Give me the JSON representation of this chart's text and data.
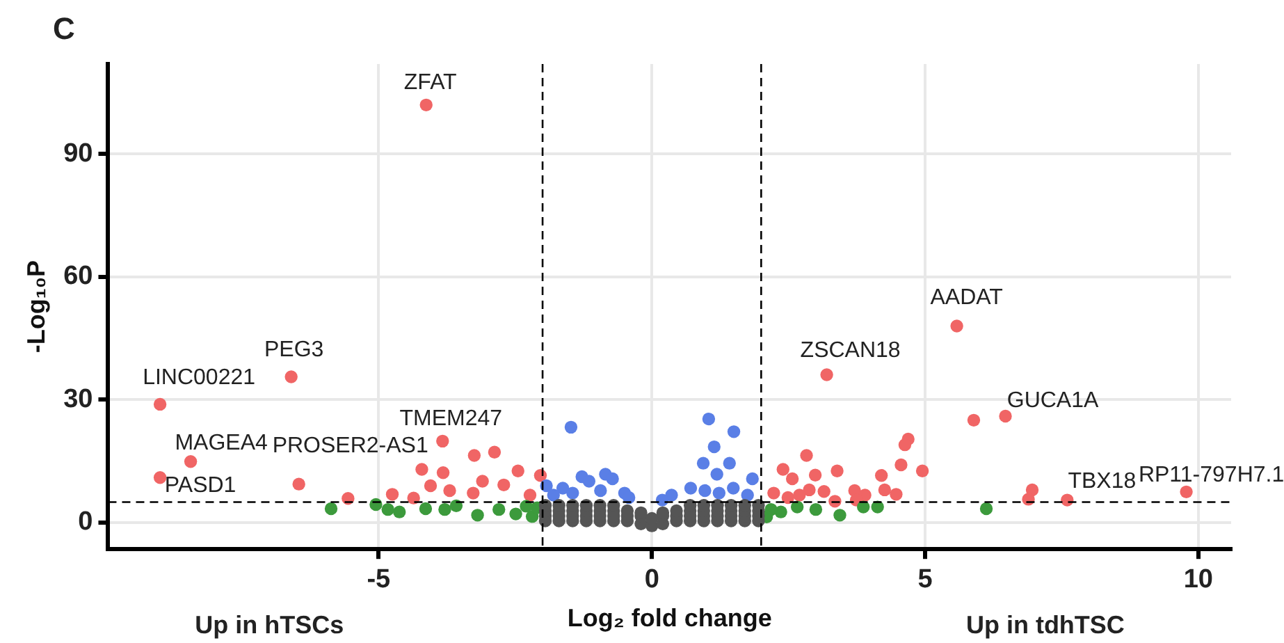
{
  "chart_data": {
    "type": "scatter",
    "xlabel": "Log₂ fold change",
    "ylabel": "-Log₁₀P",
    "xlim": [
      -9.95,
      10.6
    ],
    "ylim": [
      -6.5,
      112
    ],
    "xticks": [
      -5,
      0,
      5,
      10
    ],
    "yticks": [
      0,
      30,
      60,
      90
    ],
    "grid": true,
    "legend": false,
    "marker": "circle",
    "ref_lines": [
      {
        "axis": "x",
        "value": -2,
        "color": "#000000",
        "line_style": "dashed"
      },
      {
        "axis": "x",
        "value": 2,
        "color": "#000000",
        "line_style": "dashed"
      },
      {
        "axis": "y",
        "value": 5,
        "color": "#000000",
        "line_style": "dashed"
      }
    ],
    "series": [
      {
        "color": "#555555",
        "x": [
          -1.95,
          -1.95,
          -1.95,
          -1.95,
          -1.7,
          -1.7,
          -1.7,
          -1.7,
          -1.45,
          -1.45,
          -1.45,
          -1.45,
          -1.2,
          -1.2,
          -1.2,
          -1.2,
          -0.95,
          -0.95,
          -0.95,
          -0.95,
          -0.7,
          -0.7,
          -0.7,
          -0.7,
          -0.45,
          -0.45,
          -0.45,
          -0.2,
          -0.2,
          -0.2,
          0,
          0,
          0.2,
          0.2,
          0.2,
          0.45,
          0.45,
          0.45,
          0.7,
          0.7,
          0.7,
          0.7,
          0.95,
          0.95,
          0.95,
          0.95,
          1.2,
          1.2,
          1.2,
          1.2,
          1.45,
          1.45,
          1.45,
          1.45,
          1.7,
          1.7,
          1.7,
          1.7,
          1.95,
          1.95,
          1.95,
          1.95
        ],
        "values": [
          0.4,
          1.6,
          2.9,
          4.2,
          0.4,
          1.6,
          2.9,
          4.2,
          0.4,
          1.6,
          2.9,
          4.2,
          0.4,
          1.6,
          2.9,
          4.2,
          0.4,
          1.6,
          2.9,
          4.2,
          0.4,
          1.6,
          2.9,
          4.2,
          0.4,
          1.6,
          2.9,
          -0.3,
          1.6,
          2.4,
          -0.8,
          1.0,
          -0.3,
          1.6,
          2.4,
          0.4,
          1.6,
          2.9,
          0.4,
          1.6,
          2.9,
          4.2,
          0.4,
          1.6,
          2.9,
          4.2,
          0.4,
          1.6,
          2.9,
          4.2,
          0.4,
          1.6,
          2.9,
          4.2,
          0.4,
          1.6,
          2.9,
          4.2,
          0.4,
          1.6,
          2.9,
          4.2
        ]
      },
      {
        "color": "#3c9a3c",
        "x": [
          -5.87,
          -5.05,
          -4.62,
          -4.14,
          -3.58,
          -3.19,
          -2.8,
          -2.49,
          -2.19,
          -4.83,
          -3.79,
          -2.1,
          -2.3,
          6.12,
          3.44,
          3.87,
          4.13,
          3.0,
          2.66,
          2.36,
          2.18,
          2.1
        ],
        "values": [
          3.4,
          4.4,
          2.6,
          3.4,
          4.1,
          1.8,
          3.2,
          2.1,
          1.5,
          3.2,
          3.2,
          3.6,
          4.0,
          3.4,
          1.8,
          3.8,
          3.8,
          3.2,
          3.8,
          2.6,
          3.2,
          1.4
        ]
      },
      {
        "color": "#5a7fe6",
        "x": [
          -1.48,
          1.04,
          1.5,
          1.14,
          1.42,
          0.94,
          1.19,
          1.84,
          -0.85,
          -1.28,
          -1.15,
          -0.72,
          -1.93,
          -1.63,
          -0.5,
          -0.42,
          0.36,
          0.71,
          1.49,
          1.75,
          0.19,
          -0.94,
          -1.45,
          -1.8,
          0.97,
          1.23
        ],
        "values": [
          23.3,
          25.3,
          22.2,
          18.5,
          14.5,
          14.5,
          11.8,
          10.7,
          11.8,
          11.2,
          10.1,
          10.7,
          9,
          8.4,
          7.2,
          6.1,
          6.7,
          8.4,
          8.4,
          6.7,
          5.5,
          7.8,
          7.2,
          6.7,
          7.8,
          7.2
        ]
      },
      {
        "color": "#f06565",
        "x": [
          -4.13,
          -6.6,
          -9.0,
          -8.44,
          -9.0,
          -6.46,
          -3.83,
          -3.25,
          -2.88,
          -4.21,
          -3.82,
          -2.45,
          -2.04,
          -3.1,
          -2.71,
          -4.05,
          -3.7,
          -4.75,
          -4.36,
          -5.56,
          -3.27,
          -2.23,
          5.58,
          3.2,
          6.47,
          5.89,
          7.6,
          6.96,
          6.89,
          9.78,
          4.69,
          4.63,
          2.83,
          4.56,
          4.95,
          3.39,
          2.4,
          2.99,
          4.2,
          2.57,
          4.26,
          3.71,
          3.15,
          2.88,
          4.47,
          3.9,
          2.23,
          2.7,
          3.74,
          3.35,
          2.49
        ],
        "values": [
          102,
          35.6,
          28.9,
          14.9,
          11,
          9.4,
          19.9,
          16.4,
          17.2,
          13,
          12.2,
          12.6,
          11.5,
          10.1,
          9.2,
          9,
          7.8,
          6.9,
          6,
          5.9,
          7.2,
          6.7,
          48,
          36.1,
          26,
          25,
          5.5,
          8,
          5.7,
          7.5,
          20.4,
          19,
          16.4,
          14.1,
          12.6,
          12.6,
          13,
          11.6,
          11.5,
          10.7,
          8,
          7.8,
          7.6,
          8,
          6.9,
          6.7,
          7.2,
          6.7,
          5.5,
          5.2,
          6.1
        ]
      }
    ],
    "annotations": [
      "C",
      "Up in hTSCs",
      "Up in tdhTSC",
      {
        "text": "ZFAT",
        "x": -4.13,
        "y": 102
      },
      {
        "text": "PEG3",
        "x": -6.6,
        "y": 35.6
      },
      {
        "text": "LINC00221",
        "x": -9.0,
        "y": 28.9
      },
      {
        "text": "MAGEA4",
        "x": -8.44,
        "y": 14.9
      },
      {
        "text": "PASD1",
        "x": -9.0,
        "y": 11
      },
      {
        "text": "PROSER2-AS1",
        "x": -6.46,
        "y": 9.4
      },
      {
        "text": "TMEM247",
        "x": -3.83,
        "y": 19.9
      },
      {
        "text": "ZSCAN18",
        "x": 3.2,
        "y": 36.1
      },
      {
        "text": "AADAT",
        "x": 5.58,
        "y": 48
      },
      {
        "text": "GUCA1A",
        "x": 6.47,
        "y": 26
      },
      {
        "text": "TBX18",
        "x": 7.6,
        "y": 5.5
      },
      {
        "text": "RP11-797H7.1",
        "x": 9.78,
        "y": 7.5
      }
    ]
  }
}
